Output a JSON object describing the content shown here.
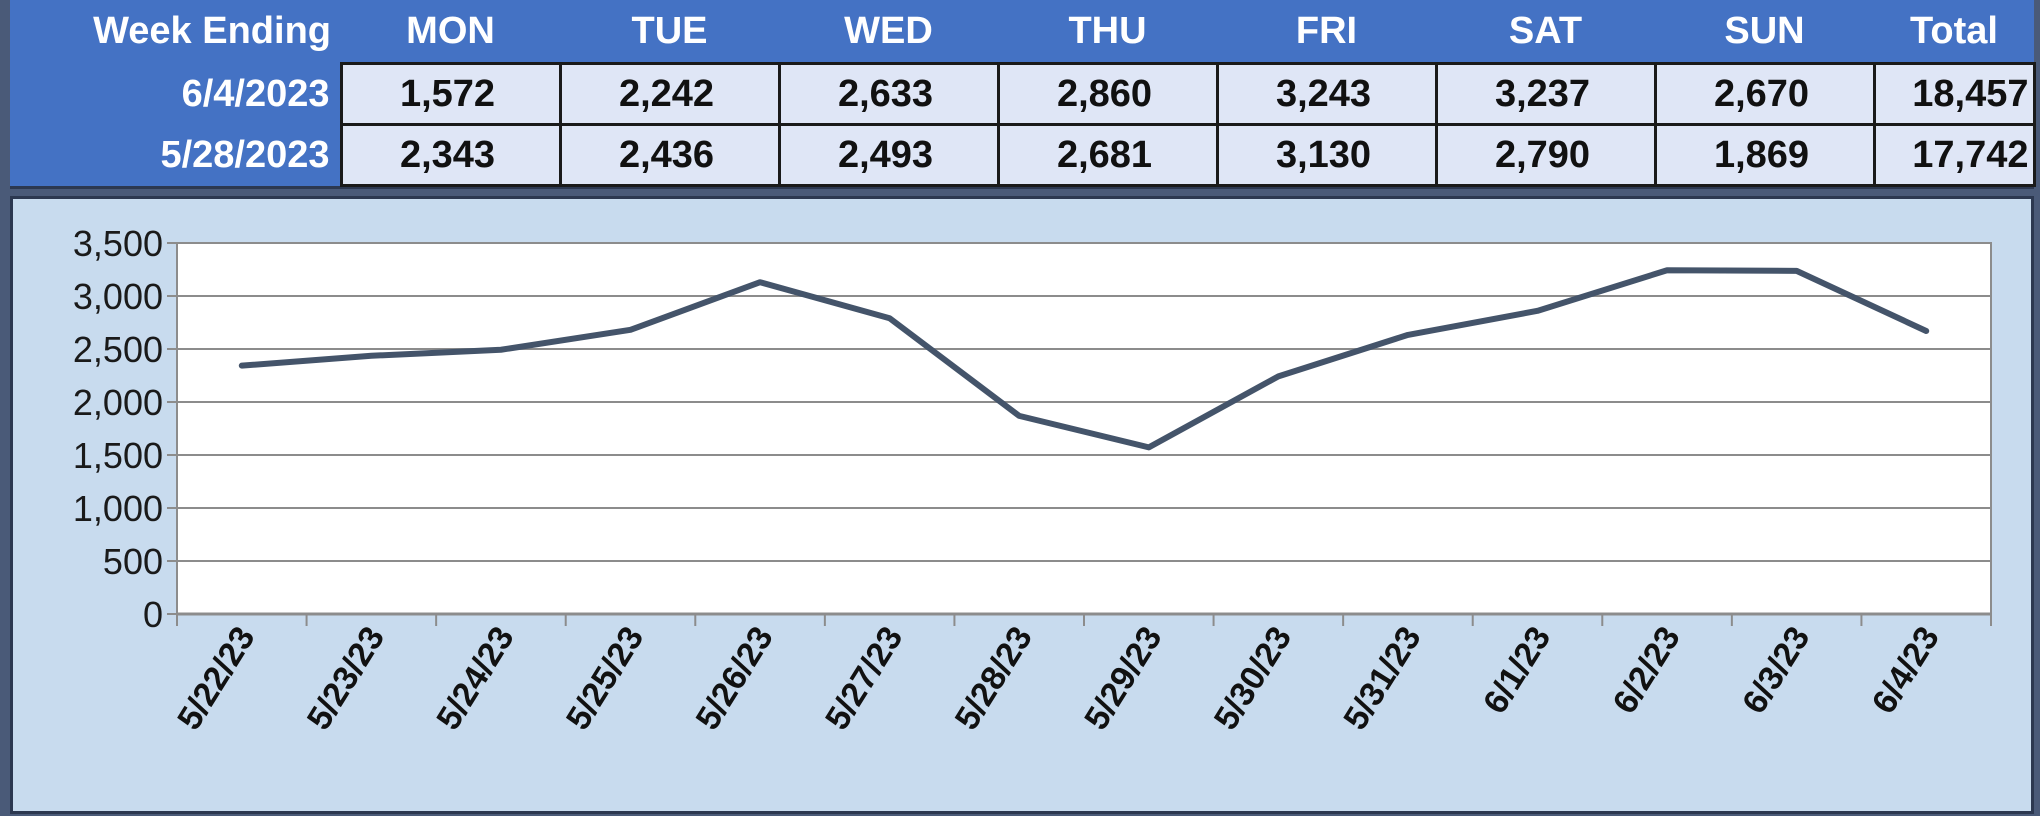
{
  "table": {
    "headers": [
      "Week Ending",
      "MON",
      "TUE",
      "WED",
      "THU",
      "FRI",
      "SAT",
      "SUN",
      "Total"
    ],
    "rows": [
      {
        "label": "6/4/2023",
        "values": [
          "1,572",
          "2,242",
          "2,633",
          "2,860",
          "3,243",
          "3,237",
          "2,670"
        ],
        "total": "18,457"
      },
      {
        "label": "5/28/2023",
        "values": [
          "2,343",
          "2,436",
          "2,493",
          "2,681",
          "3,130",
          "2,790",
          "1,869"
        ],
        "total": "17,742"
      }
    ]
  },
  "chart_data": {
    "type": "line",
    "title": "",
    "xlabel": "",
    "ylabel": "",
    "x": [
      "5/22/23",
      "5/23/23",
      "5/24/23",
      "5/25/23",
      "5/26/23",
      "5/27/23",
      "5/28/23",
      "5/29/23",
      "5/30/23",
      "5/31/23",
      "6/1/23",
      "6/2/23",
      "6/3/23",
      "6/4/23"
    ],
    "series": [
      {
        "values": [
          2343,
          2436,
          2493,
          2681,
          3130,
          2790,
          1869,
          1572,
          2242,
          2633,
          2860,
          3243,
          3237,
          2670
        ]
      }
    ],
    "ylim": [
      0,
      3500
    ],
    "yticks": [
      0,
      500,
      1000,
      1500,
      2000,
      2500,
      3000,
      3500
    ],
    "ytick_labels": [
      "0",
      "500",
      "1,000",
      "1,500",
      "2,000",
      "2,500",
      "3,000",
      "3,500"
    ],
    "grid": true,
    "legend": "none",
    "line_color": "#44546a",
    "plot_bg": "#ffffff"
  }
}
